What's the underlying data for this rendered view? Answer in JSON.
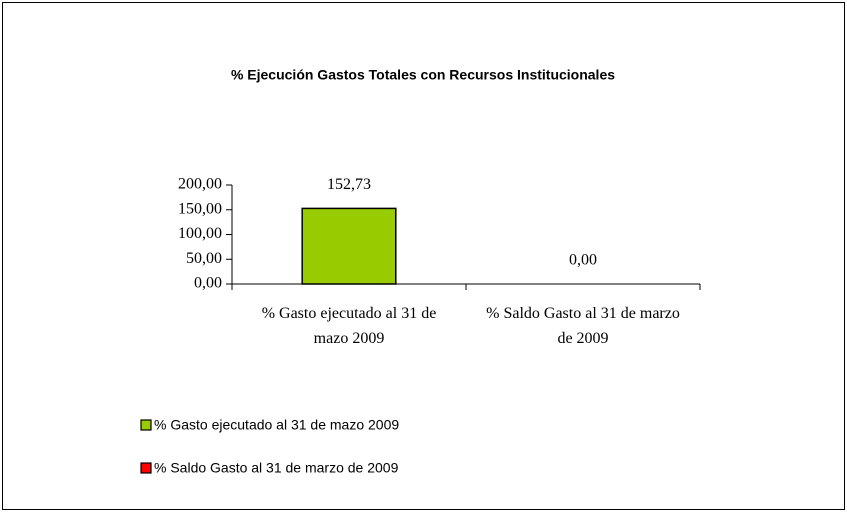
{
  "chart_data": {
    "type": "bar",
    "title": "% Ejecución Gastos Totales con Recursos Institucionales",
    "categories": [
      "% Gasto ejecutado al 31 de mazo 2009",
      "% Saldo Gasto al 31 de marzo de 2009"
    ],
    "values": [
      152.73,
      0
    ],
    "value_labels": [
      "152,73",
      "0,00"
    ],
    "colors": [
      "#99cc00",
      "#ff0000"
    ],
    "ylim": [
      0,
      200
    ],
    "yticks": [
      {
        "value": 0,
        "label": "0,00"
      },
      {
        "value": 50,
        "label": "50,00"
      },
      {
        "value": 100,
        "label": "100,00"
      },
      {
        "value": 150,
        "label": "150,00"
      },
      {
        "value": 200,
        "label": "200,00"
      }
    ],
    "legend": "bottom-left"
  }
}
